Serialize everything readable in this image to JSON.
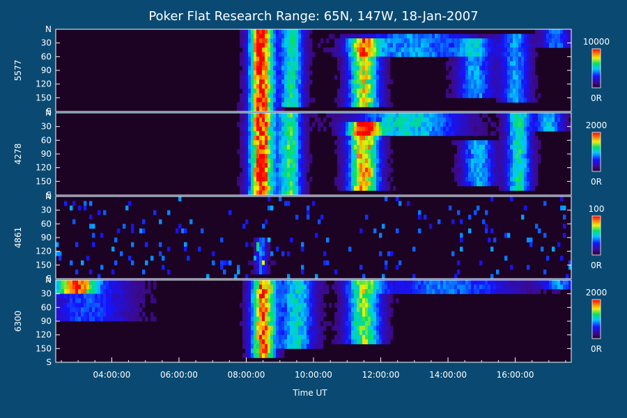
{
  "chart_data": {
    "type": "heatmap",
    "title": "Poker Flat Research Range: 65N, 147W, 18-Jan-2007",
    "xlabel": "Time UT",
    "xlim": [
      "02:20:00",
      "17:40:00"
    ],
    "x_ticks": [
      "04:00:00",
      "06:00:00",
      "08:00:00",
      "10:00:00",
      "12:00:00",
      "14:00:00",
      "16:00:00"
    ],
    "y_ticks": [
      "N",
      "30",
      "60",
      "90",
      "120",
      "150",
      "S"
    ],
    "ylim": [
      0,
      180
    ],
    "panels": [
      {
        "ylabel": "5577",
        "colorbar": {
          "max_label": "10000",
          "min_label": "0R",
          "max": 10000
        },
        "events": [
          {
            "t": 8.45,
            "w": 0.35,
            "lo": 0,
            "hi": 180,
            "i": 1.0
          },
          {
            "t": 9.35,
            "w": 0.35,
            "lo": 0,
            "hi": 170,
            "i": 0.55
          },
          {
            "t": 11.5,
            "w": 0.45,
            "lo": 20,
            "hi": 165,
            "i": 0.75
          },
          {
            "t": 13.0,
            "w": 1.6,
            "lo": 10,
            "hi": 60,
            "i": 0.4
          },
          {
            "t": 14.8,
            "w": 0.5,
            "lo": 20,
            "hi": 150,
            "i": 0.4
          },
          {
            "t": 16.0,
            "w": 0.4,
            "lo": 10,
            "hi": 160,
            "i": 0.4
          },
          {
            "t": 17.2,
            "w": 0.4,
            "lo": 0,
            "hi": 40,
            "i": 0.35
          }
        ]
      },
      {
        "ylabel": "4278",
        "colorbar": {
          "max_label": "2000",
          "min_label": "0R",
          "max": 2000
        },
        "events": [
          {
            "t": 8.45,
            "w": 0.35,
            "lo": 0,
            "hi": 180,
            "i": 1.0
          },
          {
            "t": 9.3,
            "w": 0.35,
            "lo": 0,
            "hi": 175,
            "i": 0.6
          },
          {
            "t": 11.5,
            "w": 0.45,
            "lo": 20,
            "hi": 165,
            "i": 0.85
          },
          {
            "t": 12.8,
            "w": 1.5,
            "lo": 5,
            "hi": 50,
            "i": 0.5
          },
          {
            "t": 14.9,
            "w": 0.45,
            "lo": 60,
            "hi": 160,
            "i": 0.45
          },
          {
            "t": 16.1,
            "w": 0.35,
            "lo": 5,
            "hi": 170,
            "i": 0.55
          },
          {
            "t": 17.0,
            "w": 0.4,
            "lo": 0,
            "hi": 40,
            "i": 0.45
          }
        ]
      },
      {
        "ylabel": "4861",
        "colorbar": {
          "max_label": "100",
          "min_label": "0R",
          "max": 100
        },
        "events": [
          {
            "t": 8.45,
            "w": 0.15,
            "lo": 90,
            "hi": 170,
            "i": 0.35
          }
        ]
      },
      {
        "ylabel": "6300",
        "colorbar": {
          "max_label": "2000",
          "min_label": "0R",
          "max": 2000
        },
        "events": [
          {
            "t": 2.9,
            "w": 0.55,
            "lo": 0,
            "hi": 25,
            "i": 0.7
          },
          {
            "t": 3.3,
            "w": 1.2,
            "lo": 0,
            "hi": 90,
            "i": 0.3
          },
          {
            "t": 8.5,
            "w": 0.35,
            "lo": 0,
            "hi": 165,
            "i": 0.9
          },
          {
            "t": 9.5,
            "w": 0.5,
            "lo": 0,
            "hi": 150,
            "i": 0.5
          },
          {
            "t": 11.5,
            "w": 0.5,
            "lo": 0,
            "hi": 140,
            "i": 0.65
          },
          {
            "t": 14.0,
            "w": 2.0,
            "lo": 0,
            "hi": 30,
            "i": 0.35
          },
          {
            "t": 17.3,
            "w": 0.5,
            "lo": 0,
            "hi": 15,
            "i": 0.35
          }
        ]
      }
    ]
  }
}
